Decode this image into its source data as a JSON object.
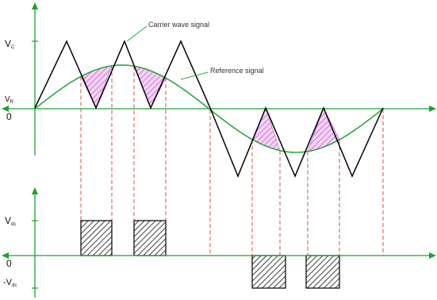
{
  "labels": {
    "carrier": "Carrier wave signal",
    "reference": "Reference signal",
    "vc_main": "V",
    "vc_sub": "C",
    "vr_main": "V",
    "vr_sub": "R",
    "zero_top": "0",
    "vdc_main": "V",
    "vdc_sub": "dc",
    "zero_bottom": "0",
    "neg_vdc_main": "-V",
    "neg_vdc_sub": "dc"
  },
  "colors": {
    "axis": "#1aa32a",
    "carrier": "#000000",
    "reference": "#2aa642",
    "dashed": "#e04848",
    "pink_hatch": "#d070d8",
    "pulse_hatch": "#111111"
  }
}
